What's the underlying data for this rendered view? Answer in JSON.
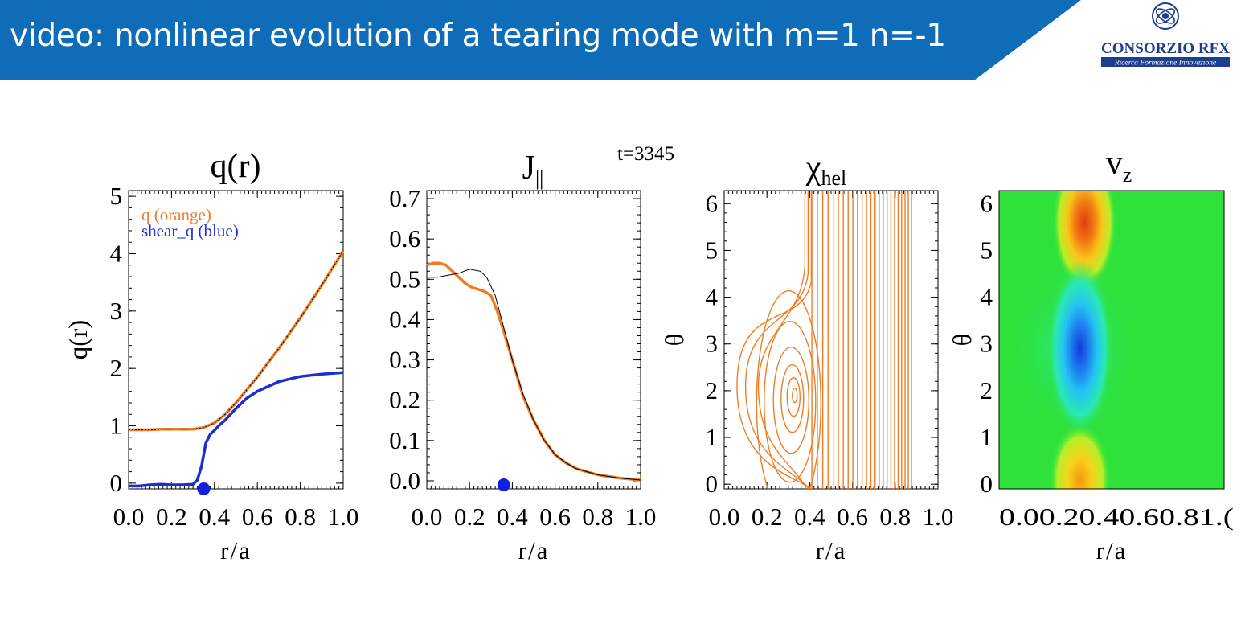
{
  "slide": {
    "title": "video: nonlinear evolution of a tearing mode with m=1 n=-1",
    "logo": {
      "name": "CONSORZIO RFX",
      "tagline": "Ricerca Formazione Innovazione"
    },
    "time_label": "t=3345",
    "colors": {
      "header_blue": "#0e6cb8",
      "orange": "#f07d25",
      "blue": "#1a2fd0",
      "field_green": "#2ee23a"
    }
  },
  "chart_data": [
    {
      "type": "line",
      "title": "q(r)",
      "xlabel": "r/a",
      "ylabel": "q(r)",
      "xlim": [
        0,
        1
      ],
      "ylim": [
        -0.1,
        5.1
      ],
      "xticks": [
        "0.0",
        "0.2",
        "0.4",
        "0.6",
        "0.8",
        "1.0"
      ],
      "yticks": [
        "0",
        "1",
        "2",
        "3",
        "4",
        "5"
      ],
      "legend": [
        {
          "text": "q (orange)",
          "color": "#f07d25"
        },
        {
          "text": "shear_q (blue)",
          "color": "#1a2fd0"
        }
      ],
      "series": [
        {
          "name": "q (orange)",
          "color": "#f07d25",
          "x": [
            0,
            0.05,
            0.1,
            0.15,
            0.2,
            0.25,
            0.3,
            0.35,
            0.4,
            0.45,
            0.5,
            0.6,
            0.7,
            0.8,
            0.9,
            1.0
          ],
          "y": [
            0.93,
            0.93,
            0.93,
            0.94,
            0.94,
            0.94,
            0.94,
            0.97,
            1.05,
            1.2,
            1.4,
            1.85,
            2.35,
            2.88,
            3.45,
            4.05
          ]
        },
        {
          "name": "shear_q (blue)",
          "color": "#1a2fd0",
          "x": [
            0,
            0.05,
            0.1,
            0.15,
            0.2,
            0.25,
            0.3,
            0.32,
            0.34,
            0.36,
            0.38,
            0.4,
            0.42,
            0.45,
            0.5,
            0.55,
            0.6,
            0.7,
            0.8,
            0.9,
            1.0
          ],
          "y": [
            -0.05,
            -0.05,
            -0.03,
            -0.02,
            -0.03,
            -0.03,
            -0.02,
            0.05,
            0.3,
            0.7,
            0.85,
            0.92,
            1.0,
            1.1,
            1.3,
            1.48,
            1.6,
            1.77,
            1.86,
            1.9,
            1.93
          ]
        }
      ],
      "marker": {
        "x": 0.35,
        "y": -0.1,
        "color": "#1020e0"
      }
    },
    {
      "type": "line",
      "title": "J||",
      "xlabel": "r/a",
      "ylabel": "",
      "xlim": [
        0,
        1
      ],
      "ylim": [
        -0.02,
        0.72
      ],
      "xticks": [
        "0.0",
        "0.2",
        "0.4",
        "0.6",
        "0.8",
        "1.0"
      ],
      "yticks": [
        "0.0",
        "0.1",
        "0.2",
        "0.3",
        "0.4",
        "0.5",
        "0.6",
        "0.7"
      ],
      "series": [
        {
          "color": "#f07d25",
          "x": [
            0,
            0.03,
            0.06,
            0.09,
            0.12,
            0.15,
            0.18,
            0.21,
            0.24,
            0.27,
            0.3,
            0.33,
            0.36,
            0.4,
            0.45,
            0.5,
            0.55,
            0.6,
            0.65,
            0.7,
            0.8,
            0.9,
            1.0
          ],
          "y": [
            0.535,
            0.54,
            0.54,
            0.535,
            0.52,
            0.505,
            0.49,
            0.48,
            0.475,
            0.47,
            0.46,
            0.42,
            0.37,
            0.3,
            0.21,
            0.15,
            0.1,
            0.065,
            0.045,
            0.03,
            0.015,
            0.007,
            0.002
          ]
        },
        {
          "color": "#000000",
          "x": [
            0,
            0.05,
            0.1,
            0.15,
            0.2,
            0.25,
            0.28,
            0.32,
            0.36,
            0.4,
            0.45,
            0.5,
            0.55,
            0.6,
            0.65,
            0.7,
            0.8,
            0.9,
            1.0
          ],
          "y": [
            0.505,
            0.505,
            0.51,
            0.515,
            0.525,
            0.52,
            0.505,
            0.46,
            0.38,
            0.3,
            0.215,
            0.15,
            0.1,
            0.065,
            0.045,
            0.03,
            0.015,
            0.007,
            0.002
          ]
        }
      ],
      "marker": {
        "x": 0.36,
        "y": -0.01,
        "color": "#1020e0"
      }
    },
    {
      "type": "contour",
      "title": "χhel",
      "xlabel": "r/a",
      "ylabel": "θ",
      "xlim": [
        0,
        1
      ],
      "ylim": [
        -0.1,
        6.28
      ],
      "xticks": [
        "0.0",
        "0.2",
        "0.4",
        "0.6",
        "0.8",
        "1.0"
      ],
      "yticks": [
        "0",
        "1",
        "2",
        "3",
        "4",
        "5",
        "6"
      ],
      "island": {
        "r": 0.33,
        "theta": 1.9
      },
      "color": "#f07d25"
    },
    {
      "type": "heatmap",
      "title": "vz",
      "xlabel": "r/a",
      "ylabel": "θ",
      "xlim": [
        0,
        1
      ],
      "ylim": [
        -0.1,
        6.28
      ],
      "xtick_text": "0.00.20.40.60.81.(",
      "yticks": [
        "0",
        "1",
        "2",
        "3",
        "4",
        "5",
        "6"
      ],
      "lobes": [
        {
          "r": 0.38,
          "theta": 5.6,
          "sign": "positive",
          "color": "#e84010"
        },
        {
          "r": 0.36,
          "theta": 2.9,
          "sign": "negative",
          "color": "#1a4ad8"
        },
        {
          "r": 0.36,
          "theta": 0.1,
          "sign": "positive",
          "color": "#f5b010"
        }
      ],
      "background_color": "#2ee23a"
    }
  ]
}
